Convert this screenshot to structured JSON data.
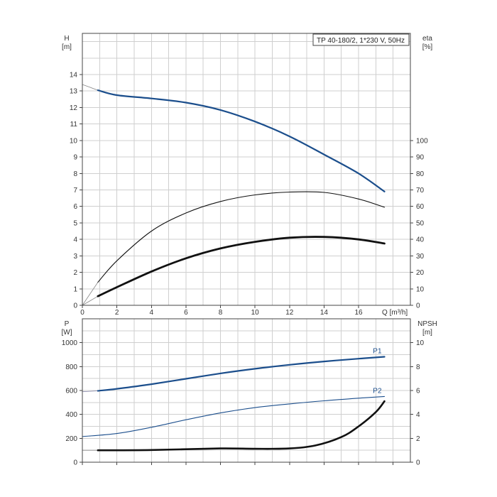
{
  "chart_title": "TP 40-180/2, 1*230 V, 50Hz",
  "chart_data": [
    {
      "type": "line",
      "title": "TP 40-180/2, 1*230 V, 50Hz",
      "xlabel": "Q [m³/h]",
      "xlim": [
        0,
        19
      ],
      "x_ticks": [
        "0",
        "2",
        "4",
        "6",
        "8",
        "10",
        "12",
        "14",
        "16"
      ],
      "ylabel_left": [
        "H",
        "[m]"
      ],
      "ylim_left": [
        0,
        16.5
      ],
      "y_ticks_left": [
        "0",
        "1",
        "2",
        "3",
        "4",
        "5",
        "6",
        "7",
        "8",
        "9",
        "10",
        "11",
        "12",
        "13",
        "14"
      ],
      "ylabel_right": [
        "eta",
        "[%]"
      ],
      "ylim_right": [
        0,
        165
      ],
      "y_ticks_right": [
        "0",
        "10",
        "20",
        "30",
        "40",
        "50",
        "60",
        "70",
        "80",
        "90",
        "100"
      ],
      "grid": true,
      "series": [
        {
          "axis": "left",
          "color": "#1b4e8c",
          "x": [
            0.9,
            2,
            4,
            6,
            8,
            10,
            12,
            14,
            16,
            17.5
          ],
          "y": [
            13.05,
            12.75,
            12.55,
            12.3,
            11.85,
            11.15,
            10.25,
            9.15,
            8.0,
            6.9
          ]
        },
        {
          "axis": "left",
          "color": "#111111",
          "x": [
            0.9,
            2,
            4,
            6,
            8,
            10,
            12,
            14,
            16,
            17.5
          ],
          "y": [
            0.55,
            1.1,
            2.05,
            2.85,
            3.45,
            3.85,
            4.1,
            4.15,
            4.0,
            3.75
          ]
        },
        {
          "axis": "right",
          "color": "#111111",
          "x": [
            0.9,
            2,
            4,
            6,
            8,
            10,
            12,
            14,
            16,
            17.5
          ],
          "y": [
            14,
            27,
            45,
            56,
            63,
            67,
            68.7,
            68.5,
            64.5,
            59.5
          ]
        }
      ]
    },
    {
      "type": "line",
      "xlim": [
        0,
        19
      ],
      "ylabel_left": [
        "P",
        "[W]"
      ],
      "ylim_left": [
        0,
        1200
      ],
      "y_ticks_left": [
        "0",
        "200",
        "400",
        "600",
        "800",
        "1000"
      ],
      "ylabel_right": [
        "NPSH",
        "[m]"
      ],
      "ylim_right": [
        0,
        12
      ],
      "y_ticks_right": [
        "0",
        "2",
        "4",
        "6",
        "8",
        "10"
      ],
      "grid": true,
      "series": [
        {
          "name": "P1",
          "axis": "left",
          "color": "#1b4e8c",
          "x": [
            0.9,
            2,
            4,
            6,
            8,
            10,
            12,
            14,
            16,
            17.5
          ],
          "y": [
            597,
            614,
            653,
            698,
            743,
            782,
            815,
            843,
            866,
            882
          ]
        },
        {
          "name": "P2",
          "axis": "left",
          "color": "#1b4e8c",
          "x": [
            0,
            2,
            4,
            6,
            8,
            10,
            12,
            14,
            16,
            17.5
          ],
          "y": [
            215,
            240,
            292,
            355,
            412,
            457,
            488,
            514,
            536,
            550
          ]
        },
        {
          "axis": "right",
          "color": "#111111",
          "x": [
            0.9,
            4,
            8,
            10,
            12,
            13.5,
            15,
            16,
            17,
            17.5
          ],
          "y": [
            1.0,
            1.02,
            1.15,
            1.12,
            1.15,
            1.4,
            2.1,
            3.0,
            4.2,
            5.1
          ]
        }
      ]
    }
  ]
}
